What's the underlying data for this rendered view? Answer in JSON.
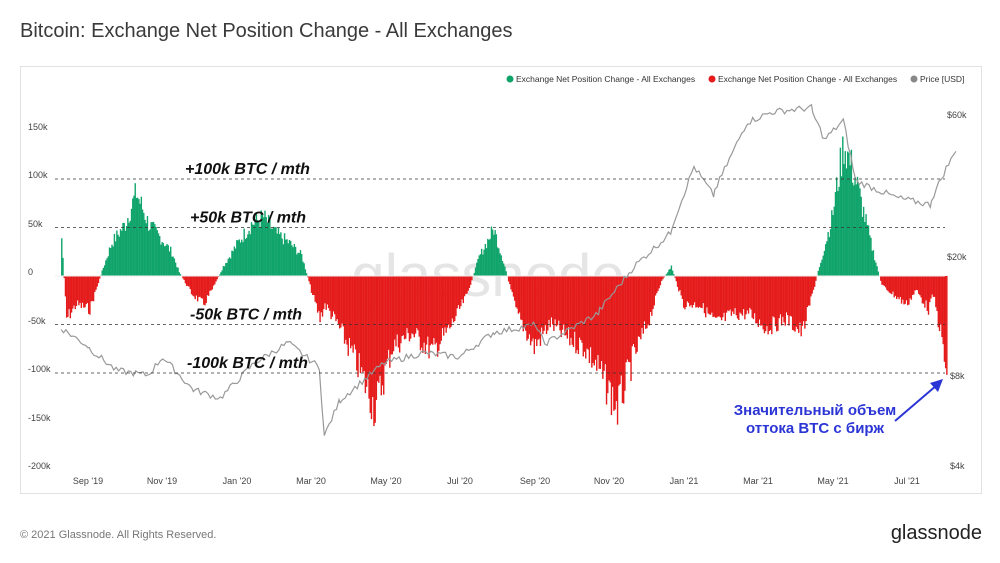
{
  "page": {
    "title": "Bitcoin: Exchange Net Position Change - All Exchanges",
    "copyright": "© 2021 Glassnode. All Rights Reserved.",
    "brand": "glassnode",
    "watermark": "glassnode"
  },
  "chart_data": {
    "type": "bar",
    "title": "Bitcoin: Exchange Net Position Change - All Exchanges",
    "legend": [
      {
        "name": "Exchange Net Position Change - All Exchanges",
        "color": "#10a46b"
      },
      {
        "name": "Exchange Net Position Change - All Exchanges",
        "color": "#e51b1b"
      },
      {
        "name": "Price [USD]",
        "color": "#888888"
      }
    ],
    "legend_position": "top-right",
    "x_ticks": [
      "Sep '19",
      "Nov '19",
      "Jan '20",
      "Mar '20",
      "May '20",
      "Jul '20",
      "Sep '20",
      "Nov '20",
      "Jan '21",
      "Mar '21",
      "May '21",
      "Jul '21"
    ],
    "y_left": {
      "ticks": [
        "150k",
        "100k",
        "50k",
        "0",
        "-50k",
        "-100k",
        "-150k",
        "-200k"
      ],
      "values": [
        150000,
        100000,
        50000,
        0,
        -50000,
        -100000,
        -150000,
        -200000
      ],
      "range": [
        -200000,
        150000
      ]
    },
    "y_right": {
      "ticks": [
        "$60k",
        "$20k",
        "$8k",
        "$4k"
      ],
      "values": [
        60000,
        20000,
        8000,
        4000
      ],
      "scale": "log"
    },
    "reference_lines": [
      {
        "value": 100000,
        "label": "+100k BTC / mth"
      },
      {
        "value": 50000,
        "label": "+50k BTC / mth"
      },
      {
        "value": -50000,
        "label": "-50k BTC / mth"
      },
      {
        "value": -100000,
        "label": "-100k BTC / mth"
      }
    ],
    "annotation": {
      "line1": "Значительный объем",
      "line2": "оттока BTC с бирж",
      "color": "#2b35d6"
    },
    "grid": false,
    "net_position_points": [
      {
        "date": "2019-08-10",
        "value": 40000
      },
      {
        "date": "2019-08-14",
        "value": -45000
      },
      {
        "date": "2019-08-22",
        "value": -30000
      },
      {
        "date": "2019-09-02",
        "value": -35000
      },
      {
        "date": "2019-09-12",
        "value": 5000
      },
      {
        "date": "2019-09-20",
        "value": 35000
      },
      {
        "date": "2019-10-01",
        "value": 55000
      },
      {
        "date": "2019-10-10",
        "value": 88000
      },
      {
        "date": "2019-10-20",
        "value": 55000
      },
      {
        "date": "2019-10-30",
        "value": 40000
      },
      {
        "date": "2019-11-08",
        "value": 25000
      },
      {
        "date": "2019-11-14",
        "value": 4000
      },
      {
        "date": "2019-11-24",
        "value": -18000
      },
      {
        "date": "2019-12-04",
        "value": -30000
      },
      {
        "date": "2019-12-12",
        "value": -12000
      },
      {
        "date": "2019-12-20",
        "value": 10000
      },
      {
        "date": "2020-01-01",
        "value": 35000
      },
      {
        "date": "2020-01-12",
        "value": 55000
      },
      {
        "date": "2020-01-22",
        "value": 62000
      },
      {
        "date": "2020-02-01",
        "value": 45000
      },
      {
        "date": "2020-02-12",
        "value": 35000
      },
      {
        "date": "2020-02-22",
        "value": 22000
      },
      {
        "date": "2020-03-02",
        "value": -20000
      },
      {
        "date": "2020-03-08",
        "value": -45000
      },
      {
        "date": "2020-03-12",
        "value": -30000
      },
      {
        "date": "2020-03-22",
        "value": -50000
      },
      {
        "date": "2020-04-08",
        "value": -95000
      },
      {
        "date": "2020-04-22",
        "value": -140000
      },
      {
        "date": "2020-05-06",
        "value": -75000
      },
      {
        "date": "2020-05-22",
        "value": -60000
      },
      {
        "date": "2020-06-08",
        "value": -80000
      },
      {
        "date": "2020-06-22",
        "value": -55000
      },
      {
        "date": "2020-07-06",
        "value": -20000
      },
      {
        "date": "2020-07-16",
        "value": 20000
      },
      {
        "date": "2020-07-28",
        "value": 50000
      },
      {
        "date": "2020-08-06",
        "value": 10000
      },
      {
        "date": "2020-08-16",
        "value": -40000
      },
      {
        "date": "2020-08-30",
        "value": -75000
      },
      {
        "date": "2020-09-12",
        "value": -50000
      },
      {
        "date": "2020-09-26",
        "value": -65000
      },
      {
        "date": "2020-10-10",
        "value": -75000
      },
      {
        "date": "2020-10-22",
        "value": -100000
      },
      {
        "date": "2020-11-06",
        "value": -140000
      },
      {
        "date": "2020-11-18",
        "value": -90000
      },
      {
        "date": "2020-12-02",
        "value": -45000
      },
      {
        "date": "2020-12-12",
        "value": -5000
      },
      {
        "date": "2020-12-20",
        "value": 10000
      },
      {
        "date": "2020-12-30",
        "value": -30000
      },
      {
        "date": "2021-01-12",
        "value": -30000
      },
      {
        "date": "2021-01-26",
        "value": -50000
      },
      {
        "date": "2021-02-08",
        "value": -40000
      },
      {
        "date": "2021-02-22",
        "value": -40000
      },
      {
        "date": "2021-03-08",
        "value": -55000
      },
      {
        "date": "2021-03-24",
        "value": -45000
      },
      {
        "date": "2021-04-06",
        "value": -60000
      },
      {
        "date": "2021-04-20",
        "value": 10000
      },
      {
        "date": "2021-04-30",
        "value": 60000
      },
      {
        "date": "2021-05-10",
        "value": 140000
      },
      {
        "date": "2021-05-20",
        "value": 100000
      },
      {
        "date": "2021-06-01",
        "value": 35000
      },
      {
        "date": "2021-06-10",
        "value": -10000
      },
      {
        "date": "2021-06-20",
        "value": -20000
      },
      {
        "date": "2021-06-30",
        "value": -30000
      },
      {
        "date": "2021-07-08",
        "value": -15000
      },
      {
        "date": "2021-07-18",
        "value": -35000
      },
      {
        "date": "2021-07-22",
        "value": -20000
      },
      {
        "date": "2021-07-28",
        "value": -60000
      },
      {
        "date": "2021-08-02",
        "value": -105000
      }
    ],
    "price_usd": [
      {
        "date": "2019-08-10",
        "value": 11500
      },
      {
        "date": "2019-09-01",
        "value": 10000
      },
      {
        "date": "2019-09-24",
        "value": 8300
      },
      {
        "date": "2019-10-20",
        "value": 8000
      },
      {
        "date": "2019-11-01",
        "value": 9200
      },
      {
        "date": "2019-11-25",
        "value": 7200
      },
      {
        "date": "2019-12-18",
        "value": 6700
      },
      {
        "date": "2020-01-15",
        "value": 8800
      },
      {
        "date": "2020-02-12",
        "value": 10300
      },
      {
        "date": "2020-03-08",
        "value": 8500
      },
      {
        "date": "2020-03-12",
        "value": 5000
      },
      {
        "date": "2020-03-24",
        "value": 6500
      },
      {
        "date": "2020-04-30",
        "value": 8800
      },
      {
        "date": "2020-06-01",
        "value": 9500
      },
      {
        "date": "2020-07-01",
        "value": 9200
      },
      {
        "date": "2020-07-28",
        "value": 11100
      },
      {
        "date": "2020-09-01",
        "value": 11800
      },
      {
        "date": "2020-09-08",
        "value": 10200
      },
      {
        "date": "2020-10-22",
        "value": 12900
      },
      {
        "date": "2020-11-20",
        "value": 18500
      },
      {
        "date": "2020-12-20",
        "value": 24000
      },
      {
        "date": "2021-01-08",
        "value": 40000
      },
      {
        "date": "2021-01-24",
        "value": 32000
      },
      {
        "date": "2021-02-20",
        "value": 56000
      },
      {
        "date": "2021-03-13",
        "value": 61000
      },
      {
        "date": "2021-04-14",
        "value": 63000
      },
      {
        "date": "2021-04-25",
        "value": 49000
      },
      {
        "date": "2021-05-10",
        "value": 57000
      },
      {
        "date": "2021-05-20",
        "value": 36000
      },
      {
        "date": "2021-06-22",
        "value": 31500
      },
      {
        "date": "2021-07-20",
        "value": 29800
      },
      {
        "date": "2021-08-02",
        "value": 39500
      },
      {
        "date": "2021-08-10",
        "value": 45000
      }
    ]
  }
}
